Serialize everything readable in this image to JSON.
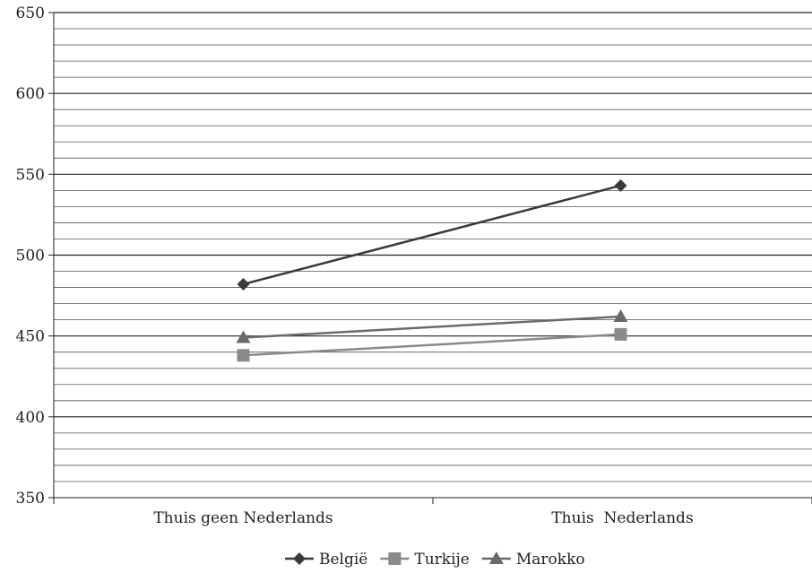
{
  "chart_data": {
    "type": "line",
    "categories": [
      "Thuis geen Nederlands",
      "Thuis  Nederlands"
    ],
    "series": [
      {
        "name": "België",
        "values": [
          482,
          543
        ],
        "color": "#3a3a3a",
        "marker": "diamond"
      },
      {
        "name": "Turkije",
        "values": [
          438,
          451
        ],
        "color": "#8a8a8a",
        "marker": "square"
      },
      {
        "name": "Marokko",
        "values": [
          449,
          462
        ],
        "color": "#6a6a6a",
        "marker": "triangle"
      }
    ],
    "ylim": [
      350,
      650
    ],
    "yticks": [
      350,
      400,
      450,
      500,
      550,
      600,
      650
    ],
    "minor_grid_step": 10,
    "grid": true,
    "legend": "bottom-center"
  }
}
